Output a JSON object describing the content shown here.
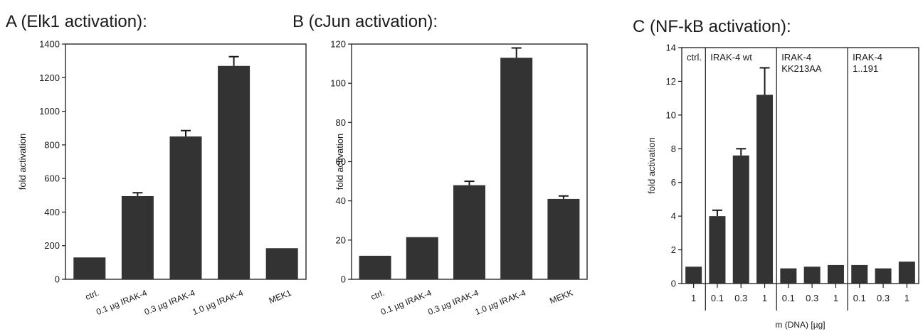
{
  "chart_data": [
    {
      "type": "bar",
      "title": "A (Elk1 activation):",
      "ylabel": "fold activation",
      "xlabel": "",
      "ylim": [
        0,
        1400
      ],
      "yticks": [
        0,
        200,
        400,
        600,
        800,
        1000,
        1200,
        1400
      ],
      "categories": [
        "ctrl.",
        "0.1 µg IRAK-4",
        "0.3 µg IRAK-4",
        "1.0 µg IRAK-4",
        "MEK1"
      ],
      "values": [
        130,
        495,
        850,
        1270,
        185
      ],
      "errors": [
        0,
        20,
        35,
        55,
        0
      ],
      "bar_color": "#333333",
      "grid": false
    },
    {
      "type": "bar",
      "title": "B (cJun activation):",
      "ylabel": "fold activation",
      "xlabel": "",
      "ylim": [
        0,
        120
      ],
      "yticks": [
        0,
        20,
        40,
        60,
        80,
        100,
        120
      ],
      "categories": [
        "ctrl.",
        "0.1 µg IRAK-4",
        "0.3 µg IRAK-4",
        "1.0 µg IRAK-4",
        "MEKK"
      ],
      "values": [
        12,
        21.5,
        48,
        113,
        41
      ],
      "errors": [
        0,
        0,
        2,
        5,
        1.5
      ],
      "bar_color": "#333333",
      "grid": false
    },
    {
      "type": "bar",
      "title": "C (NF-kB activation):",
      "ylabel": "fold activation",
      "xlabel": "m (DNA) [µg]",
      "ylim": [
        0,
        14
      ],
      "yticks": [
        0,
        2,
        4,
        6,
        8,
        10,
        12,
        14
      ],
      "categories": [
        "1",
        "0.1",
        "0.3",
        "1",
        "0.1",
        "0.3",
        "1",
        "0.1",
        "0.3",
        "1"
      ],
      "values": [
        1.0,
        4.0,
        7.6,
        11.2,
        0.9,
        1.0,
        1.1,
        1.1,
        0.9,
        1.3
      ],
      "errors": [
        0,
        0.35,
        0.4,
        1.6,
        0,
        0,
        0,
        0,
        0,
        0
      ],
      "groups": [
        {
          "label": [
            "ctrl."
          ],
          "count": 1
        },
        {
          "label": [
            "IRAK-4 wt"
          ],
          "count": 3
        },
        {
          "label": [
            "IRAK-4",
            "KK213AA"
          ],
          "count": 3
        },
        {
          "label": [
            "IRAK-4",
            "1..191"
          ],
          "count": 3
        }
      ],
      "bar_color": "#333333",
      "grid": false
    }
  ]
}
